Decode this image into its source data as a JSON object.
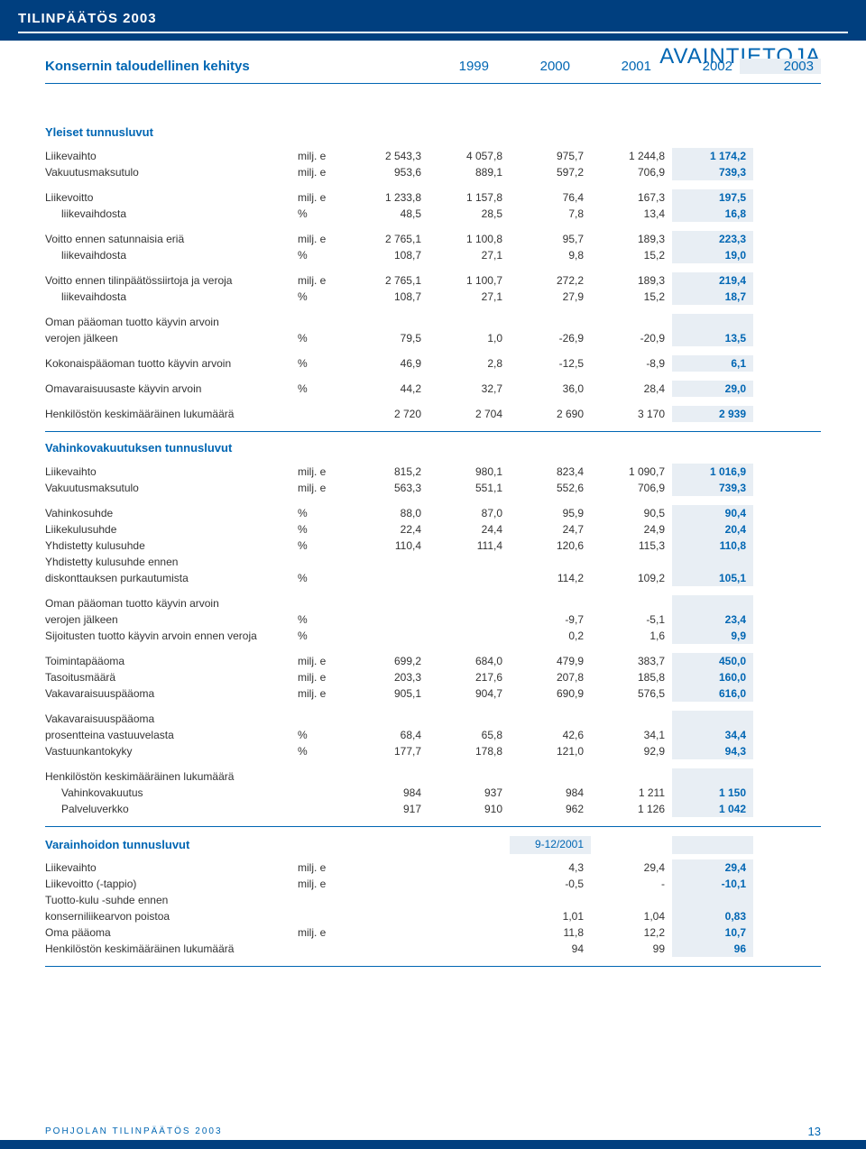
{
  "header": {
    "title": "TILINPÄÄTÖS 2003"
  },
  "page_title": "AVAINTIETOJA",
  "subtitle": "Konsernin taloudellinen kehitys",
  "years": [
    "1999",
    "2000",
    "2001",
    "2002",
    "2003"
  ],
  "colors": {
    "brand_dark": "#003f7f",
    "brand_blue": "#0066b3",
    "highlight_bg": "#e8eef4"
  },
  "section1": {
    "title": "Yleiset tunnusluvut",
    "groups": [
      [
        {
          "label": "Liikevaihto",
          "unit": "milj. e",
          "vals": [
            "2 543,3",
            "4 057,8",
            "975,7",
            "1 244,8",
            "1 174,2"
          ]
        },
        {
          "label": "Vakuutusmaksutulo",
          "unit": "milj. e",
          "vals": [
            "953,6",
            "889,1",
            "597,2",
            "706,9",
            "739,3"
          ]
        }
      ],
      [
        {
          "label": "Liikevoitto",
          "unit": "milj. e",
          "vals": [
            "1 233,8",
            "1 157,8",
            "76,4",
            "167,3",
            "197,5"
          ]
        },
        {
          "label": "liikevaihdosta",
          "indent": true,
          "unit": "%",
          "vals": [
            "48,5",
            "28,5",
            "7,8",
            "13,4",
            "16,8"
          ]
        }
      ],
      [
        {
          "label": "Voitto ennen satunnaisia eriä",
          "unit": "milj. e",
          "vals": [
            "2 765,1",
            "1 100,8",
            "95,7",
            "189,3",
            "223,3"
          ]
        },
        {
          "label": "liikevaihdosta",
          "indent": true,
          "unit": "%",
          "vals": [
            "108,7",
            "27,1",
            "9,8",
            "15,2",
            "19,0"
          ]
        }
      ],
      [
        {
          "label": "Voitto ennen tilinpäätössiirtoja ja veroja",
          "unit": "milj. e",
          "vals": [
            "2 765,1",
            "1 100,7",
            "272,2",
            "189,3",
            "219,4"
          ]
        },
        {
          "label": "liikevaihdosta",
          "indent": true,
          "unit": "%",
          "vals": [
            "108,7",
            "27,1",
            "27,9",
            "15,2",
            "18,7"
          ]
        }
      ],
      [
        {
          "label": "Oman pääoman tuotto käyvin arvoin",
          "unit": "",
          "vals": [
            "",
            "",
            "",
            "",
            ""
          ]
        },
        {
          "label": "verojen jälkeen",
          "unit": "%",
          "vals": [
            "79,5",
            "1,0",
            "-26,9",
            "-20,9",
            "13,5"
          ]
        }
      ],
      [
        {
          "label": "Kokonaispääoman tuotto käyvin arvoin",
          "unit": "%",
          "vals": [
            "46,9",
            "2,8",
            "-12,5",
            "-8,9",
            "6,1"
          ]
        }
      ],
      [
        {
          "label": "Omavaraisuusaste käyvin arvoin",
          "unit": "%",
          "vals": [
            "44,2",
            "32,7",
            "36,0",
            "28,4",
            "29,0"
          ]
        }
      ],
      [
        {
          "label": "Henkilöstön keskimääräinen lukumäärä",
          "unit": "",
          "vals": [
            "2 720",
            "2 704",
            "2 690",
            "3 170",
            "2 939"
          ]
        }
      ]
    ]
  },
  "section2": {
    "title": "Vahinkovakuutuksen tunnusluvut",
    "groups": [
      [
        {
          "label": "Liikevaihto",
          "unit": "milj. e",
          "vals": [
            "815,2",
            "980,1",
            "823,4",
            "1 090,7",
            "1 016,9"
          ]
        },
        {
          "label": "Vakuutusmaksutulo",
          "unit": "milj. e",
          "vals": [
            "563,3",
            "551,1",
            "552,6",
            "706,9",
            "739,3"
          ]
        }
      ],
      [
        {
          "label": "Vahinkosuhde",
          "unit": "%",
          "vals": [
            "88,0",
            "87,0",
            "95,9",
            "90,5",
            "90,4"
          ]
        },
        {
          "label": "Liikekulusuhde",
          "unit": "%",
          "vals": [
            "22,4",
            "24,4",
            "24,7",
            "24,9",
            "20,4"
          ]
        },
        {
          "label": "Yhdistetty kulusuhde",
          "unit": "%",
          "vals": [
            "110,4",
            "111,4",
            "120,6",
            "115,3",
            "110,8"
          ]
        },
        {
          "label": "Yhdistetty kulusuhde ennen",
          "unit": "",
          "vals": [
            "",
            "",
            "",
            "",
            ""
          ]
        },
        {
          "label": "diskonttauksen purkautumista",
          "unit": "%",
          "vals": [
            "",
            "",
            "114,2",
            "109,2",
            "105,1"
          ]
        }
      ],
      [
        {
          "label": "Oman pääoman tuotto käyvin arvoin",
          "unit": "",
          "vals": [
            "",
            "",
            "",
            "",
            ""
          ]
        },
        {
          "label": "verojen jälkeen",
          "unit": "%",
          "vals": [
            "",
            "",
            "-9,7",
            "-5,1",
            "23,4"
          ]
        },
        {
          "label": "Sijoitusten tuotto käyvin arvoin ennen veroja",
          "unit": "%",
          "vals": [
            "",
            "",
            "0,2",
            "1,6",
            "9,9"
          ]
        }
      ],
      [
        {
          "label": "Toimintapääoma",
          "unit": "milj. e",
          "vals": [
            "699,2",
            "684,0",
            "479,9",
            "383,7",
            "450,0"
          ]
        },
        {
          "label": "Tasoitusmäärä",
          "unit": "milj. e",
          "vals": [
            "203,3",
            "217,6",
            "207,8",
            "185,8",
            "160,0"
          ]
        },
        {
          "label": "Vakavaraisuuspääoma",
          "unit": "milj. e",
          "vals": [
            "905,1",
            "904,7",
            "690,9",
            "576,5",
            "616,0"
          ]
        }
      ],
      [
        {
          "label": "Vakavaraisuuspääoma",
          "unit": "",
          "vals": [
            "",
            "",
            "",
            "",
            ""
          ]
        },
        {
          "label": "prosentteina vastuuvelasta",
          "unit": "%",
          "vals": [
            "68,4",
            "65,8",
            "42,6",
            "34,1",
            "34,4"
          ]
        },
        {
          "label": "Vastuunkantokyky",
          "unit": "%",
          "vals": [
            "177,7",
            "178,8",
            "121,0",
            "92,9",
            "94,3"
          ]
        }
      ],
      [
        {
          "label": "Henkilöstön keskimääräinen lukumäärä",
          "unit": "",
          "vals": [
            "",
            "",
            "",
            "",
            ""
          ]
        },
        {
          "label": "Vahinkovakuutus",
          "indent": true,
          "unit": "",
          "vals": [
            "984",
            "937",
            "984",
            "1 211",
            "1 150"
          ]
        },
        {
          "label": "Palveluverkko",
          "indent": true,
          "unit": "",
          "vals": [
            "917",
            "910",
            "962",
            "1 126",
            "1 042"
          ]
        }
      ]
    ]
  },
  "section3": {
    "title": "Varainhoidon tunnusluvut",
    "mid_header": "9-12/2001",
    "groups": [
      [
        {
          "label": "Liikevaihto",
          "unit": "milj. e",
          "vals": [
            "",
            "",
            "4,3",
            "29,4",
            "29,4"
          ]
        },
        {
          "label": "Liikevoitto (-tappio)",
          "unit": "milj. e",
          "vals": [
            "",
            "",
            "-0,5",
            "-",
            "-10,1"
          ]
        },
        {
          "label": "Tuotto-kulu -suhde ennen",
          "unit": "",
          "vals": [
            "",
            "",
            "",
            "",
            ""
          ]
        },
        {
          "label": "konserniliikearvon poistoa",
          "unit": "",
          "vals": [
            "",
            "",
            "1,01",
            "1,04",
            "0,83"
          ]
        },
        {
          "label": "Oma pääoma",
          "unit": "milj. e",
          "vals": [
            "",
            "",
            "11,8",
            "12,2",
            "10,7"
          ]
        },
        {
          "label": "Henkilöstön keskimääräinen lukumäärä",
          "unit": "",
          "vals": [
            "",
            "",
            "94",
            "99",
            "96"
          ]
        }
      ]
    ]
  },
  "footer": {
    "text": "POHJOLAN TILINPÄÄTÖS 2003",
    "page": "13"
  }
}
